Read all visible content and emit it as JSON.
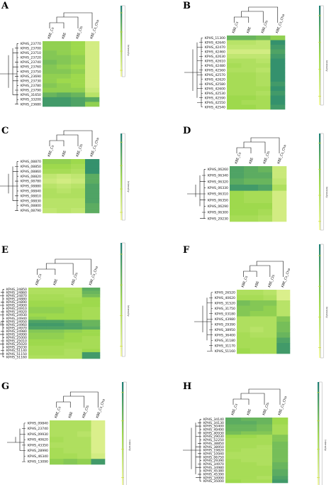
{
  "colors": {
    "low": "#f4f9a6",
    "mid": "#9ed94d",
    "high": "#1a7f75",
    "scale_bar_border": "#a6a6a6",
    "scale_tick": "#cddc39"
  },
  "chart_data": [
    {
      "type": "heatmap",
      "panel": "A",
      "columns": [
        "KBE_Cs",
        "KBE",
        "KBE_Cts",
        "KBE_Cs_Cha"
      ],
      "rows": [
        "KPHS_23770",
        "KPHS_23700",
        "KPHS_23710",
        "KPHS_23720",
        "KPHS_23740",
        "KPHS_23760",
        "KPHS_23750",
        "KPHS_23690",
        "KPHS_23730",
        "KPHS_23780",
        "KPHS_23790",
        "KPHS_31650",
        "KPHS_33200",
        "KPHS_23680"
      ],
      "values": [
        [
          0.55,
          0.55,
          0.5,
          0.2
        ],
        [
          0.55,
          0.55,
          0.5,
          0.2
        ],
        [
          0.6,
          0.55,
          0.5,
          0.2
        ],
        [
          0.6,
          0.6,
          0.55,
          0.2
        ],
        [
          0.65,
          0.6,
          0.55,
          0.2
        ],
        [
          0.6,
          0.55,
          0.5,
          0.2
        ],
        [
          0.6,
          0.6,
          0.55,
          0.2
        ],
        [
          0.55,
          0.55,
          0.5,
          0.2
        ],
        [
          0.55,
          0.5,
          0.5,
          0.2
        ],
        [
          0.6,
          0.55,
          0.5,
          0.2
        ],
        [
          0.55,
          0.55,
          0.55,
          0.25
        ],
        [
          0.7,
          0.75,
          0.7,
          0.35
        ],
        [
          0.85,
          0.85,
          0.8,
          0.75
        ],
        [
          0.85,
          0.85,
          0.8,
          0.55
        ]
      ],
      "scale_label": "Intensity",
      "scale_ticks": [
        "",
        "",
        "",
        ""
      ]
    },
    {
      "type": "heatmap",
      "panel": "B",
      "columns": [
        "KBE_Cs",
        "KBE",
        "KBE_Cts",
        "KBE_Cs_Cha"
      ],
      "rows": [
        "KPHS_11300",
        "KPHS_42640",
        "KPHS_42470",
        "KPHS_42460",
        "KPHS_42630",
        "KPHS_42610",
        "KPHS_42480",
        "KPHS_42560",
        "KPHS_42570",
        "KPHS_42620",
        "KPHS_42580",
        "KPHS_42600",
        "KPHS_42530",
        "KPHS_42590",
        "KPHS_42550",
        "KPHS_42540"
      ],
      "values": [
        [
          0.7,
          0.7,
          0.65,
          0.55
        ],
        [
          0.35,
          0.35,
          0.3,
          0.9
        ],
        [
          0.3,
          0.3,
          0.3,
          0.85
        ],
        [
          0.2,
          0.2,
          0.2,
          0.8
        ],
        [
          0.3,
          0.3,
          0.3,
          0.85
        ],
        [
          0.4,
          0.4,
          0.35,
          0.9
        ],
        [
          0.45,
          0.4,
          0.4,
          0.9
        ],
        [
          0.4,
          0.4,
          0.35,
          0.9
        ],
        [
          0.45,
          0.45,
          0.4,
          0.9
        ],
        [
          0.45,
          0.45,
          0.4,
          0.9
        ],
        [
          0.45,
          0.45,
          0.4,
          0.85
        ],
        [
          0.45,
          0.45,
          0.45,
          0.9
        ],
        [
          0.45,
          0.45,
          0.4,
          0.85
        ],
        [
          0.5,
          0.5,
          0.45,
          0.9
        ],
        [
          0.5,
          0.45,
          0.45,
          0.9
        ],
        [
          0.5,
          0.5,
          0.45,
          0.85
        ]
      ],
      "scale_label": "Intensity",
      "scale_ticks": [
        "",
        "",
        "",
        ""
      ]
    },
    {
      "type": "heatmap",
      "panel": "C",
      "columns": [
        "KBE_Cs",
        "KBE",
        "KBE_Cts",
        "KBE_Cs_Cha"
      ],
      "rows": [
        "KPHS_08870",
        "KPHS_08850",
        "KPHS_08860",
        "KPHS_08820",
        "KPHS_08780",
        "KPHS_08880",
        "KPHS_08840",
        "KPHS_08810",
        "KPHS_08830",
        "KPHS_08800",
        "KPHS_08790"
      ],
      "values": [
        [
          0.55,
          0.55,
          0.5,
          0.9
        ],
        [
          0.5,
          0.5,
          0.45,
          0.9
        ],
        [
          0.45,
          0.45,
          0.4,
          0.9
        ],
        [
          0.3,
          0.25,
          0.3,
          0.75
        ],
        [
          0.25,
          0.2,
          0.25,
          0.75
        ],
        [
          0.35,
          0.3,
          0.35,
          0.8
        ],
        [
          0.4,
          0.35,
          0.4,
          0.8
        ],
        [
          0.4,
          0.4,
          0.4,
          0.8
        ],
        [
          0.35,
          0.35,
          0.35,
          0.8
        ],
        [
          0.35,
          0.35,
          0.35,
          0.75
        ],
        [
          0.3,
          0.35,
          0.3,
          0.75
        ]
      ],
      "scale_label": "Intensity",
      "scale_ticks": [
        "",
        "",
        "",
        ""
      ]
    },
    {
      "type": "heatmap",
      "panel": "D",
      "columns": [
        "KBE_Cs",
        "KBE",
        "KBE_Cts",
        "KBE_Cs_Cha"
      ],
      "rows": [
        "KPHS_06260",
        "KPHS_06340",
        "KPHS_06320",
        "KPHS_06330",
        "KPHS_06310",
        "KPHS_06350",
        "KPHS_06290",
        "KPHS_06300",
        "KPHS_29230"
      ],
      "values": [
        [
          0.8,
          0.75,
          0.7,
          0.25
        ],
        [
          0.8,
          0.75,
          0.75,
          0.25
        ],
        [
          0.75,
          0.7,
          0.7,
          0.3
        ],
        [
          0.85,
          0.85,
          0.8,
          0.4
        ],
        [
          0.5,
          0.45,
          0.45,
          0.2
        ],
        [
          0.5,
          0.45,
          0.45,
          0.2
        ],
        [
          0.5,
          0.5,
          0.5,
          0.2
        ],
        [
          0.5,
          0.5,
          0.45,
          0.2
        ],
        [
          0.45,
          0.45,
          0.4,
          0.2
        ]
      ],
      "scale_label": "Intensity",
      "scale_ticks": [
        "",
        "",
        "",
        ""
      ]
    },
    {
      "type": "heatmap",
      "panel": "E",
      "columns": [
        "KBE_Cs",
        "KBE",
        "KBE_Cts",
        "KBE_Cs_Cha"
      ],
      "rows": [
        "KPHS_24850",
        "KPHS_24860",
        "KPHS_24870",
        "KPHS_24880",
        "KPHS_24890",
        "KPHS_24900",
        "KPHS_24910",
        "KPHS_24920",
        "KPHS_24930",
        "KPHS_24940",
        "KPHS_24950",
        "KPHS_24960",
        "KPHS_24970",
        "KPHS_24980",
        "KPHS_24990",
        "KPHS_25000",
        "KPHS_25010",
        "KPHS_25020",
        "KPHS_25030",
        "KPHS_51140",
        "KPHS_51150",
        "KPHS_51160"
      ],
      "values": [
        [
          0.4,
          0.4,
          0.4,
          0.75
        ],
        [
          0.4,
          0.4,
          0.4,
          0.7
        ],
        [
          0.45,
          0.45,
          0.4,
          0.65
        ],
        [
          0.45,
          0.45,
          0.45,
          0.5
        ],
        [
          0.5,
          0.5,
          0.45,
          0.5
        ],
        [
          0.5,
          0.5,
          0.5,
          0.5
        ],
        [
          0.55,
          0.55,
          0.5,
          0.45
        ],
        [
          0.55,
          0.55,
          0.5,
          0.45
        ],
        [
          0.5,
          0.5,
          0.5,
          0.45
        ],
        [
          0.55,
          0.5,
          0.5,
          0.45
        ],
        [
          0.8,
          0.8,
          0.75,
          0.7
        ],
        [
          0.85,
          0.85,
          0.8,
          0.7
        ],
        [
          0.8,
          0.8,
          0.8,
          0.75
        ],
        [
          0.6,
          0.6,
          0.55,
          0.5
        ],
        [
          0.55,
          0.55,
          0.5,
          0.5
        ],
        [
          0.55,
          0.55,
          0.5,
          0.45
        ],
        [
          0.5,
          0.5,
          0.5,
          0.45
        ],
        [
          0.5,
          0.5,
          0.45,
          0.45
        ],
        [
          0.45,
          0.45,
          0.45,
          0.45
        ],
        [
          0.45,
          0.45,
          0.4,
          0.5
        ],
        [
          0.45,
          0.45,
          0.4,
          0.85
        ],
        [
          0.4,
          0.4,
          0.4,
          0.85
        ]
      ],
      "scale_label": "Intensity",
      "scale_ticks": [
        "",
        "",
        "",
        ""
      ]
    },
    {
      "type": "heatmap",
      "panel": "F",
      "columns": [
        "KBE_Cs",
        "KBE",
        "KBE_Cts",
        "KBE_Cs_Cha"
      ],
      "rows": [
        "KPHS_26520",
        "KPHS_40620",
        "KPHS_31520",
        "KPHS_31750",
        "KPHS_03180",
        "KPHS_43980",
        "KPHS_29390",
        "KPHS_38950",
        "KPHS_36400",
        "KPHS_31180",
        "KPHS_31170",
        "KPHS_51160"
      ],
      "values": [
        [
          0.4,
          0.4,
          0.35,
          0.15
        ],
        [
          0.45,
          0.45,
          0.4,
          0.15
        ],
        [
          0.65,
          0.6,
          0.6,
          0.35
        ],
        [
          0.6,
          0.6,
          0.55,
          0.35
        ],
        [
          0.6,
          0.55,
          0.55,
          0.35
        ],
        [
          0.4,
          0.4,
          0.4,
          0.6
        ],
        [
          0.4,
          0.4,
          0.4,
          0.65
        ],
        [
          0.4,
          0.35,
          0.4,
          0.65
        ],
        [
          0.45,
          0.4,
          0.4,
          0.7
        ],
        [
          0.45,
          0.45,
          0.45,
          0.8
        ],
        [
          0.45,
          0.45,
          0.45,
          0.85
        ],
        [
          0.5,
          0.45,
          0.45,
          0.85
        ]
      ],
      "scale_label": "Intensity",
      "scale_ticks": [
        "",
        "",
        "",
        ""
      ]
    },
    {
      "type": "heatmap",
      "panel": "G",
      "columns": [
        "KBE_Cs",
        "KBE",
        "KBE_Cts",
        "KBE_Cs_Cha"
      ],
      "rows": [
        "KPHS_09840",
        "KPHS_23740",
        "KPHS_09930",
        "KPHS_40620",
        "KPHS_43350",
        "KPHS_28990",
        "KPHS_46340",
        "KPHS_13090"
      ],
      "values": [
        [
          0.4,
          0.4,
          0.4,
          0.15
        ],
        [
          0.4,
          0.4,
          0.4,
          0.15
        ],
        [
          0.4,
          0.4,
          0.35,
          0.15
        ],
        [
          0.45,
          0.4,
          0.4,
          0.15
        ],
        [
          0.4,
          0.4,
          0.4,
          0.15
        ],
        [
          0.45,
          0.4,
          0.4,
          0.15
        ],
        [
          0.45,
          0.45,
          0.4,
          0.2
        ],
        [
          0.55,
          0.6,
          0.55,
          0.85
        ]
      ],
      "scale_label": "Intensity",
      "scale_ticks": [
        "",
        "",
        "",
        ""
      ]
    },
    {
      "type": "heatmap",
      "panel": "H",
      "columns": [
        "KBE_Cs",
        "KBE",
        "KBE_Cts",
        "KBE_Cs_Cha"
      ],
      "rows": [
        "KPHS_34140",
        "KPHS_34130",
        "KPHS_50400",
        "KPHS_49490",
        "KPHS_40930",
        "KPHS_29030",
        "KPHS_52250",
        "KPHS_38850",
        "KPHS_38950",
        "KPHS_19820",
        "KPHS_10940",
        "KPHS_06750",
        "KPHS_29390",
        "KPHS_34970",
        "KPHS_34980",
        "KPHS_45380",
        "KPHS_45390",
        "KPHS_34990",
        "KPHS_35000"
      ],
      "values": [
        [
          0.75,
          0.7,
          0.7,
          0.5
        ],
        [
          0.75,
          0.75,
          0.7,
          0.5
        ],
        [
          0.7,
          0.7,
          0.65,
          0.45
        ],
        [
          0.7,
          0.7,
          0.65,
          0.45
        ],
        [
          0.65,
          0.6,
          0.6,
          0.45
        ],
        [
          0.5,
          0.5,
          0.45,
          0.6
        ],
        [
          0.45,
          0.45,
          0.45,
          0.6
        ],
        [
          0.45,
          0.45,
          0.45,
          0.65
        ],
        [
          0.45,
          0.45,
          0.4,
          0.65
        ],
        [
          0.45,
          0.4,
          0.4,
          0.65
        ],
        [
          0.4,
          0.4,
          0.4,
          0.65
        ],
        [
          0.4,
          0.4,
          0.4,
          0.65
        ],
        [
          0.45,
          0.4,
          0.4,
          0.65
        ],
        [
          0.45,
          0.45,
          0.4,
          0.7
        ],
        [
          0.45,
          0.45,
          0.45,
          0.7
        ],
        [
          0.45,
          0.45,
          0.45,
          0.75
        ],
        [
          0.45,
          0.45,
          0.45,
          0.75
        ],
        [
          0.45,
          0.45,
          0.4,
          0.8
        ],
        [
          0.5,
          0.45,
          0.45,
          0.85
        ]
      ],
      "scale_label": "Intensity",
      "scale_ticks": [
        "",
        "",
        "",
        ""
      ]
    }
  ]
}
